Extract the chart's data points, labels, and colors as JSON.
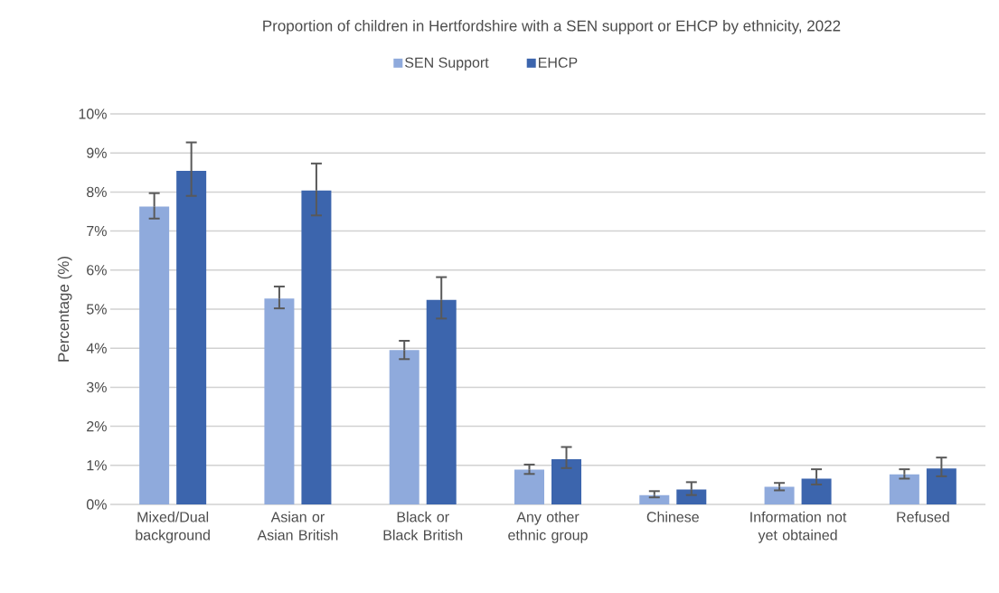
{
  "chart_data": {
    "type": "bar",
    "title": "Proportion of children in Hertfordshire with a SEN support or EHCP by ethnicity, 2022",
    "ylabel": "Percentage (%)",
    "categories": [
      "Mixed/Dual background",
      "Asian or Asian British",
      "Black or Black British",
      "Any other ethnic group",
      "Chinese",
      "Information not yet obtained",
      "Refused"
    ],
    "series": [
      {
        "name": "SEN Support",
        "color": "#8faadc",
        "values": [
          7.63,
          5.27,
          3.95,
          0.89,
          0.24,
          0.45,
          0.77
        ],
        "errors": [
          [
            7.32,
            7.97
          ],
          [
            5.02,
            5.58
          ],
          [
            3.72,
            4.19
          ],
          [
            0.78,
            1.02
          ],
          [
            0.18,
            0.34
          ],
          [
            0.36,
            0.55
          ],
          [
            0.66,
            0.9
          ]
        ]
      },
      {
        "name": "EHCP",
        "color": "#3c65ad",
        "values": [
          8.54,
          8.04,
          5.24,
          1.16,
          0.38,
          0.66,
          0.92
        ],
        "errors": [
          [
            7.9,
            9.27
          ],
          [
            7.4,
            8.73
          ],
          [
            4.76,
            5.82
          ],
          [
            0.93,
            1.47
          ],
          [
            0.24,
            0.57
          ],
          [
            0.51,
            0.9
          ],
          [
            0.72,
            1.2
          ]
        ]
      }
    ],
    "ylim": [
      0,
      10
    ],
    "yticks": [
      {
        "value": 0,
        "label": "0%"
      },
      {
        "value": 1,
        "label": "1%"
      },
      {
        "value": 2,
        "label": "2%"
      },
      {
        "value": 3,
        "label": "3%"
      },
      {
        "value": 4,
        "label": "4%"
      },
      {
        "value": 5,
        "label": "5%"
      },
      {
        "value": 6,
        "label": "6%"
      },
      {
        "value": 7,
        "label": "7%"
      },
      {
        "value": 8,
        "label": "8%"
      },
      {
        "value": 9,
        "label": "9%"
      },
      {
        "value": 10,
        "label": "10%"
      }
    ],
    "grid": "y",
    "legend": "top"
  }
}
